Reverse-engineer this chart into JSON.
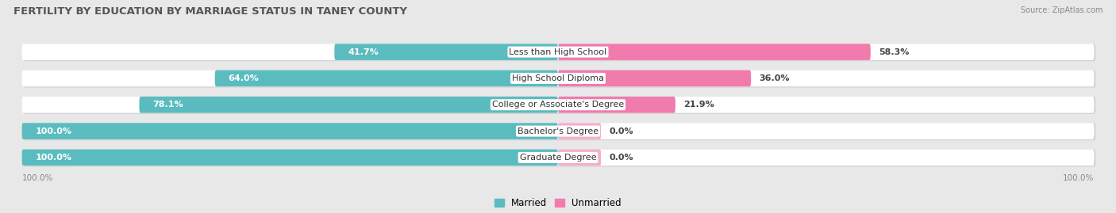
{
  "title": "FERTILITY BY EDUCATION BY MARRIAGE STATUS IN TANEY COUNTY",
  "source": "Source: ZipAtlas.com",
  "categories": [
    "Less than High School",
    "High School Diploma",
    "College or Associate's Degree",
    "Bachelor's Degree",
    "Graduate Degree"
  ],
  "married": [
    41.7,
    64.0,
    78.1,
    100.0,
    100.0
  ],
  "unmarried": [
    58.3,
    36.0,
    21.9,
    0.0,
    0.0
  ],
  "unmarried_stub": [
    10.0,
    10.0,
    10.0,
    8.0,
    8.0
  ],
  "married_color": "#5bbcbf",
  "unmarried_color": "#f07bac",
  "unmarried_stub_color": "#f5aece",
  "bg_color": "#e8e8e8",
  "row_bg_color": "#ffffff",
  "title_fontsize": 9.5,
  "label_fontsize": 8.0,
  "axis_label_fontsize": 7.5,
  "legend_fontsize": 8.5,
  "figsize": [
    14.06,
    2.69
  ],
  "dpi": 100
}
